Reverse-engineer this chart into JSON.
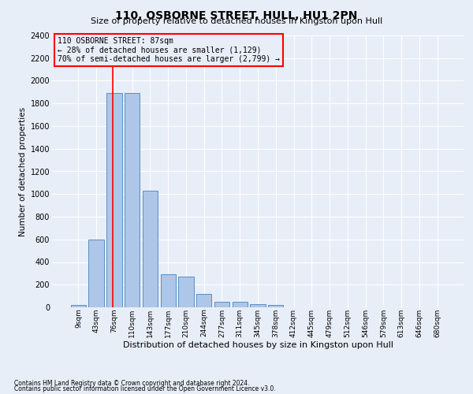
{
  "title": "110, OSBORNE STREET, HULL, HU1 2PN",
  "subtitle": "Size of property relative to detached houses in Kingston upon Hull",
  "xlabel": "Distribution of detached houses by size in Kingston upon Hull",
  "ylabel": "Number of detached properties",
  "footnote1": "Contains HM Land Registry data © Crown copyright and database right 2024.",
  "footnote2": "Contains public sector information licensed under the Open Government Licence v3.0.",
  "bin_labels": [
    "9sqm",
    "43sqm",
    "76sqm",
    "110sqm",
    "143sqm",
    "177sqm",
    "210sqm",
    "244sqm",
    "277sqm",
    "311sqm",
    "345sqm",
    "378sqm",
    "412sqm",
    "445sqm",
    "479sqm",
    "512sqm",
    "546sqm",
    "579sqm",
    "613sqm",
    "646sqm",
    "680sqm"
  ],
  "bar_values": [
    20,
    600,
    1890,
    1890,
    1030,
    290,
    270,
    120,
    50,
    50,
    30,
    20,
    0,
    0,
    0,
    0,
    0,
    0,
    0,
    0,
    0
  ],
  "bar_color": "#aec6e8",
  "bar_edge_color": "#5a8fc2",
  "ylim_max": 2400,
  "yticks": [
    0,
    200,
    400,
    600,
    800,
    1000,
    1200,
    1400,
    1600,
    1800,
    2000,
    2200,
    2400
  ],
  "property_label": "110 OSBORNE STREET: 87sqm",
  "pct_smaller": "28% of detached houses are smaller (1,129)",
  "pct_larger": "70% of semi-detached houses are larger (2,799)",
  "vline_pos": 1.93,
  "bg_color": "#e8eef8",
  "grid_color": "#ffffff",
  "annotation_fontsize": 7.0,
  "title_fontsize": 10,
  "subtitle_fontsize": 8,
  "ylabel_fontsize": 7.5,
  "xlabel_fontsize": 8
}
